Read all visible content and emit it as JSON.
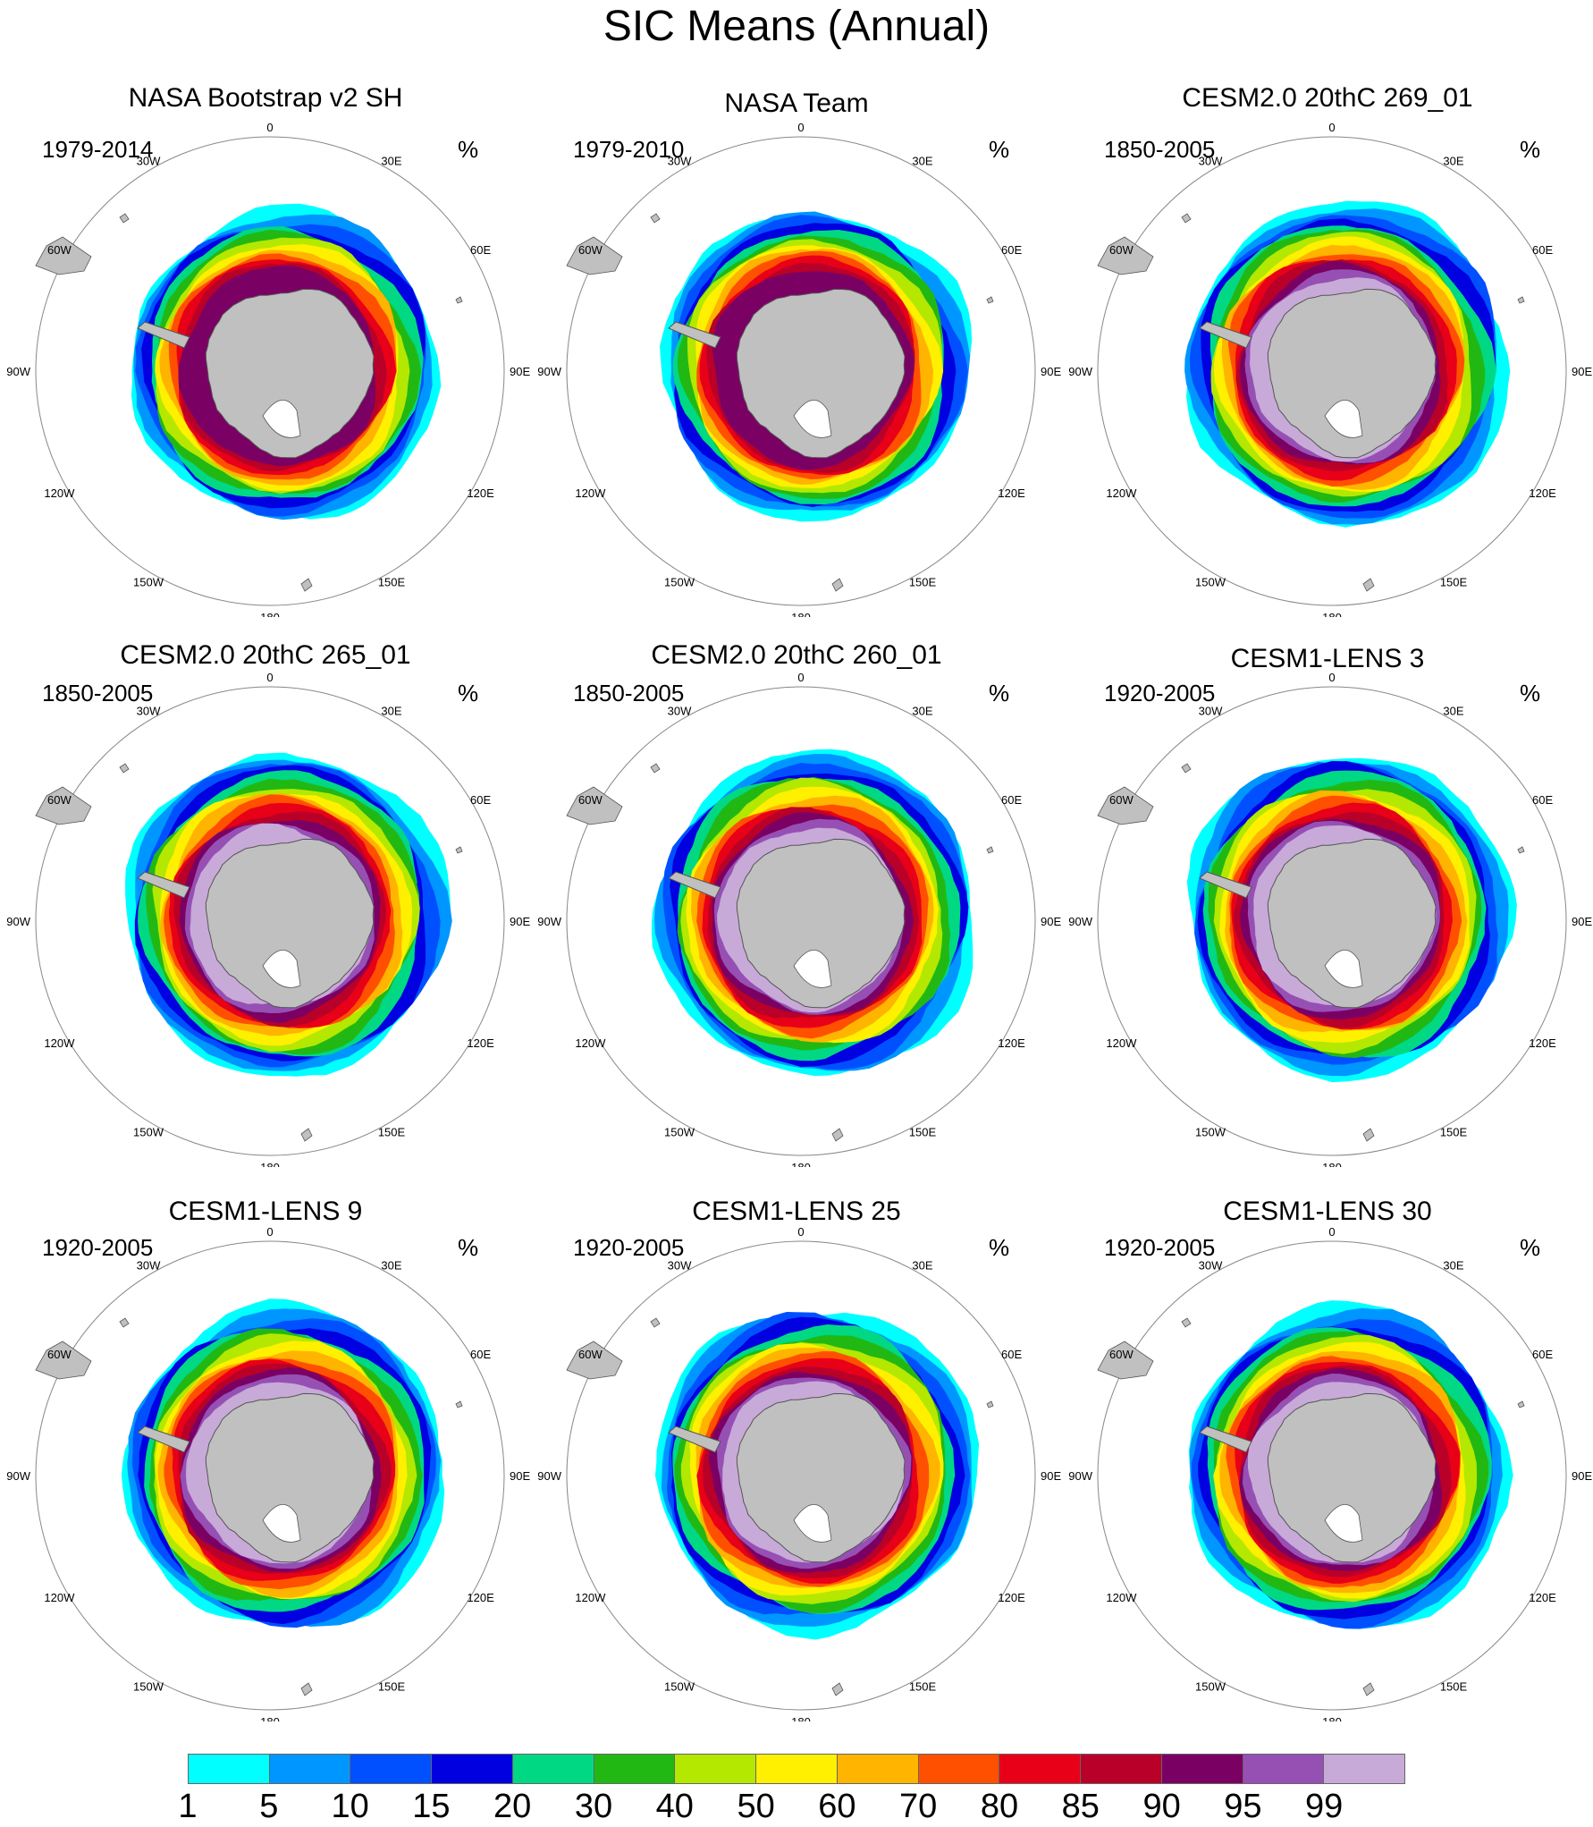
{
  "title": "SIC Means (Annual)",
  "unit": "%",
  "longitude_labels": [
    "0",
    "30E",
    "60E",
    "90E",
    "120E",
    "150E",
    "180",
    "150W",
    "120W",
    "90W",
    "60W",
    "30W"
  ],
  "panels": [
    {
      "title": "NASA Bootstrap v2 SH",
      "years": "1979-2014"
    },
    {
      "title": "NASA Team",
      "years": "1979-2010"
    },
    {
      "title": "CESM2.0 20thC 269_01",
      "years": "1850-2005"
    },
    {
      "title": "CESM2.0 20thC 265_01",
      "years": "1850-2005"
    },
    {
      "title": "CESM2.0 20thC 260_01",
      "years": "1850-2005"
    },
    {
      "title": "CESM1-LENS 3",
      "years": "1920-2005"
    },
    {
      "title": "CESM1-LENS 9",
      "years": "1920-2005"
    },
    {
      "title": "CESM1-LENS 25",
      "years": "1920-2005"
    },
    {
      "title": "CESM1-LENS 30",
      "years": "1920-2005"
    }
  ],
  "colorbar": {
    "labels": [
      "1",
      "5",
      "10",
      "15",
      "20",
      "30",
      "40",
      "50",
      "60",
      "70",
      "80",
      "85",
      "90",
      "95",
      "99"
    ],
    "colors": [
      "#00ffff",
      "#0096ff",
      "#0050ff",
      "#0000e0",
      "#00d884",
      "#22b814",
      "#b4e800",
      "#fff000",
      "#ffb400",
      "#ff5000",
      "#e80018",
      "#b80028",
      "#7a0064",
      "#9650b4",
      "#c8aad8"
    ]
  },
  "colors": {
    "land": "#c0c0c0",
    "coast": "#555555",
    "circle": "#888888"
  }
}
